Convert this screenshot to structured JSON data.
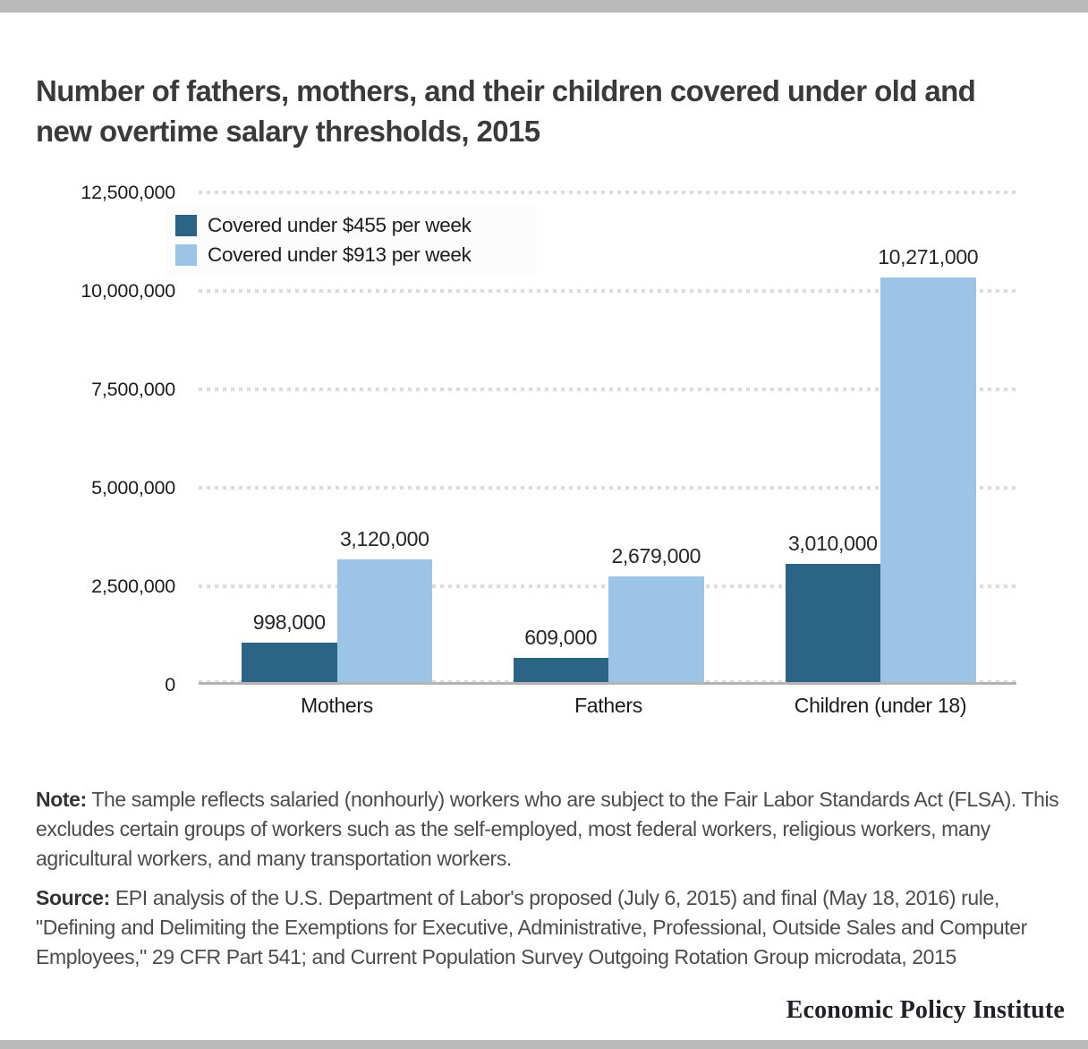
{
  "page": {
    "title": "Number of fathers, mothers, and their children covered under old and new overtime salary thresholds, 2015",
    "footer_brand": "Economic Policy Institute"
  },
  "note": {
    "label": "Note:",
    "text": "The sample reflects salaried (nonhourly) workers who are subject to the Fair Labor Standards Act (FLSA). This excludes certain groups of workers such as the self-employed, most federal workers, religious workers, many agricultural workers, and many transportation workers."
  },
  "source": {
    "label": "Source:",
    "text": "EPI analysis of the U.S. Department of Labor's proposed (July 6, 2015) and final (May 18, 2016) rule, \"Defining and Delimiting the Exemptions for Executive, Administrative, Professional, Outside Sales and Computer Employees,\" 29 CFR Part 541; and Current Population Survey Outgoing Rotation Group microdata, 2015"
  },
  "colors": {
    "accent_dark_blue": "#2b6484",
    "accent_light_blue": "#9cc4e6",
    "gridline_gray": "#dbdbdb",
    "axis_gray": "#b3b3b3",
    "frame_bar_gray": "#b9b9b9",
    "text_dark": "#1c1c1c"
  },
  "chart_data": {
    "type": "bar",
    "title": "Number of fathers, mothers, and their children covered under old and new overtime salary thresholds, 2015",
    "categories": [
      "Mothers",
      "Fathers",
      "Children (under 18)"
    ],
    "series": [
      {
        "name": "Covered under $455 per week",
        "color": "#2b6484",
        "values": [
          998000,
          609000,
          3010000
        ],
        "labels": [
          "998,000",
          "609,000",
          "3,010,000"
        ]
      },
      {
        "name": "Covered under $913 per week",
        "color": "#9cc4e6",
        "values": [
          3120000,
          2679000,
          10271000
        ],
        "labels": [
          "3,120,000",
          "2,679,000",
          "10,271,000"
        ]
      }
    ],
    "xlabel": "",
    "ylabel": "",
    "ylim": [
      0,
      12500000
    ],
    "yticks": [
      {
        "value": 0,
        "label": "0"
      },
      {
        "value": 2500000,
        "label": "2,500,000"
      },
      {
        "value": 5000000,
        "label": "5,000,000"
      },
      {
        "value": 7500000,
        "label": "7,500,000"
      },
      {
        "value": 10000000,
        "label": "10,000,000"
      },
      {
        "value": 12500000,
        "label": "12,500,000"
      }
    ],
    "grid": "horizontal-dotted",
    "legend_position": "top-left"
  }
}
